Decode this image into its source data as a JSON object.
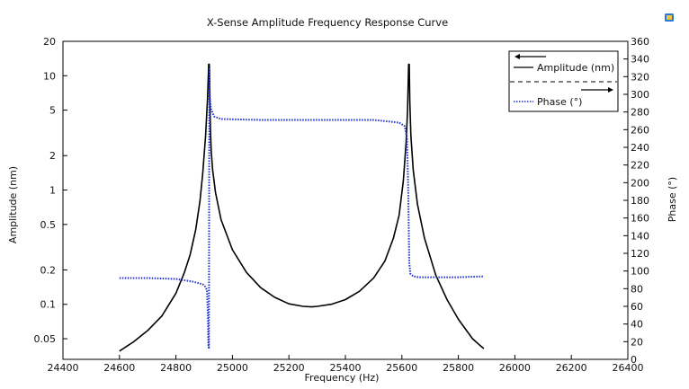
{
  "chart_data": {
    "type": "line",
    "title": "X-Sense Amplitude Frequency Response Curve",
    "xlabel": "Frequency (Hz)",
    "ylabel_left": "Amplitude (nm)",
    "ylabel_right": "Phase (°)",
    "xlim": [
      24400,
      26400
    ],
    "ylim_left": [
      0.033,
      20
    ],
    "yscale_left": "log",
    "ylim_right": [
      0,
      360
    ],
    "x_ticks": [
      "24400",
      "24600",
      "24800",
      "25000",
      "25200",
      "25400",
      "25600",
      "25800",
      "26000",
      "26200",
      "26400"
    ],
    "y_left_ticks": [
      "0.05",
      "0.1",
      "0.2",
      "0.5",
      "1",
      "2",
      "5",
      "10",
      "20"
    ],
    "y_right_ticks": [
      "0",
      "20",
      "40",
      "60",
      "80",
      "100",
      "120",
      "140",
      "160",
      "180",
      "200",
      "220",
      "240",
      "260",
      "280",
      "300",
      "320",
      "340",
      "360"
    ],
    "grid": false,
    "legend_position": "top-right",
    "series": [
      {
        "name": "Amplitude (nm)",
        "axis": "left",
        "color": "#000000",
        "style": "solid",
        "x": [
          24600,
          24650,
          24700,
          24750,
          24800,
          24830,
          24850,
          24870,
          24885,
          24895,
          24905,
          24912,
          24916,
          24918,
          24920,
          24922,
          24925,
          24930,
          24940,
          24960,
          25000,
          25050,
          25100,
          25150,
          25200,
          25250,
          25280,
          25300,
          25350,
          25400,
          25450,
          25500,
          25540,
          25570,
          25590,
          25605,
          25615,
          25620,
          25624,
          25626,
          25628,
          25632,
          25640,
          25655,
          25680,
          25720,
          25760,
          25800,
          25850,
          25880,
          25890
        ],
        "y": [
          0.039,
          0.047,
          0.059,
          0.079,
          0.125,
          0.19,
          0.27,
          0.45,
          0.8,
          1.4,
          3.0,
          6.5,
          12.6,
          12.6,
          6.0,
          3.5,
          2.2,
          1.5,
          0.95,
          0.55,
          0.3,
          0.19,
          0.14,
          0.115,
          0.101,
          0.096,
          0.095,
          0.096,
          0.1,
          0.11,
          0.13,
          0.17,
          0.24,
          0.38,
          0.6,
          1.2,
          2.6,
          5.0,
          12.6,
          12.6,
          6.0,
          3.0,
          1.5,
          0.75,
          0.38,
          0.18,
          0.11,
          0.074,
          0.05,
          0.043,
          0.041
        ]
      },
      {
        "name": "Phase (°)",
        "axis": "right",
        "color": "#1f2fd0",
        "style": "dotted",
        "x": [
          24600,
          24700,
          24800,
          24860,
          24895,
          24905,
          24910,
          24913,
          24915,
          24917,
          24918,
          24919,
          24920,
          24921,
          24922,
          24925,
          24935,
          24960,
          25100,
          25300,
          25500,
          25590,
          25610,
          25618,
          25622,
          25624,
          25626,
          25630,
          25640,
          25660,
          25700,
          25800,
          25890
        ],
        "y": [
          92,
          92,
          91,
          88,
          85,
          82,
          78,
          50,
          15,
          12,
          330,
          310,
          298,
          292,
          288,
          283,
          275,
          272,
          271,
          271,
          271,
          268,
          264,
          250,
          200,
          160,
          110,
          97,
          94,
          93,
          93,
          93,
          94
        ]
      }
    ]
  }
}
